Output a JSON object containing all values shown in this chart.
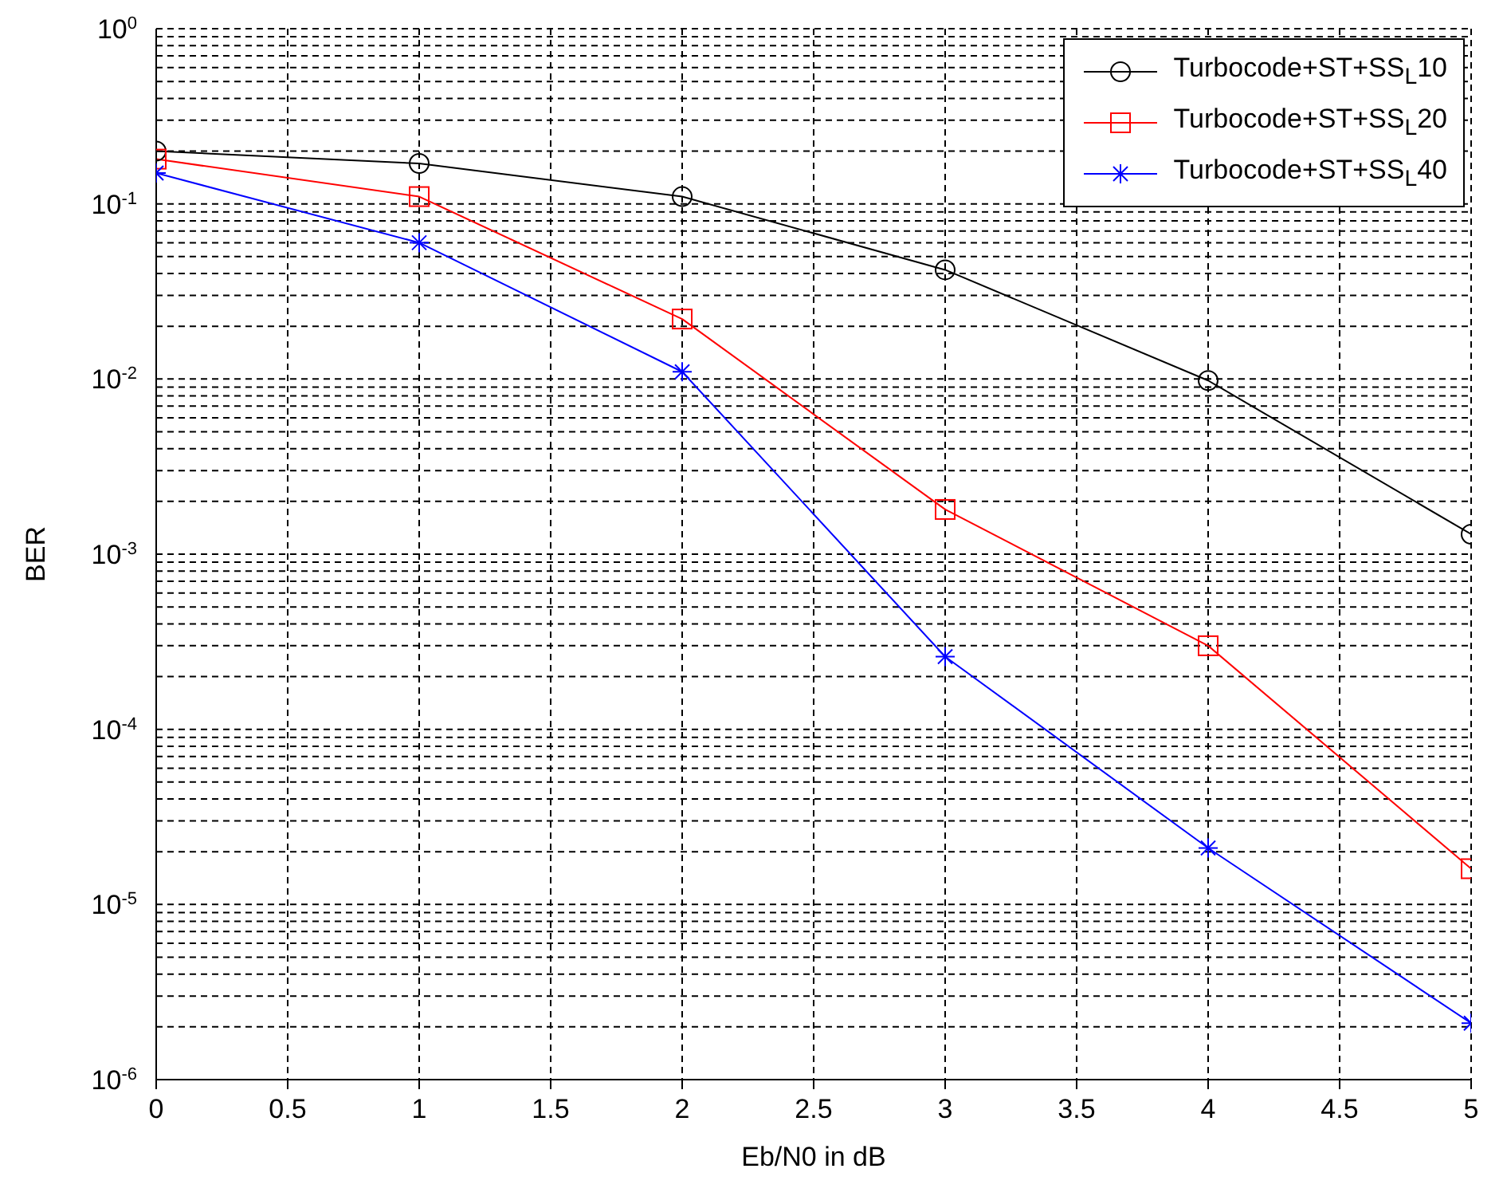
{
  "chart_data": {
    "type": "line",
    "xlabel": "Eb/N0 in dB",
    "ylabel": "BER",
    "log": "y",
    "grid": true,
    "legend": "top right",
    "x": [
      0,
      1,
      2,
      3,
      4,
      5
    ],
    "xlim": [
      0,
      5
    ],
    "xticks": [
      0,
      0.5,
      1,
      1.5,
      2,
      2.5,
      3,
      3.5,
      4,
      4.5,
      5
    ],
    "ylim": [
      1e-06,
      1
    ],
    "yticks": [
      {
        "value": 1e-06,
        "label": "10$^{-6}$"
      },
      {
        "value": 2e-06,
        "label": null
      },
      {
        "value": 3e-06,
        "label": null
      },
      {
        "value": 4e-06,
        "label": null
      },
      {
        "value": 5e-06,
        "label": null
      },
      {
        "value": 6e-06,
        "label": null
      },
      {
        "value": 7e-06,
        "label": null
      },
      {
        "value": 8e-06,
        "label": null
      },
      {
        "value": 9e-06,
        "label": null
      },
      {
        "value": 1e-05,
        "label": "10$^{-5}$"
      },
      {
        "value": 2e-05,
        "label": null
      },
      {
        "value": 3e-05,
        "label": null
      },
      {
        "value": 4e-05,
        "label": null
      },
      {
        "value": 5e-05,
        "label": null
      },
      {
        "value": 6e-05,
        "label": null
      },
      {
        "value": 7e-05,
        "label": null
      },
      {
        "value": 8e-05,
        "label": null
      },
      {
        "value": 9e-05,
        "label": null
      },
      {
        "value": 0.0001,
        "label": "10$^{-4}$"
      },
      {
        "value": 0.0002,
        "label": null
      },
      {
        "value": 0.0003,
        "label": null
      },
      {
        "value": 0.0004,
        "label": null
      },
      {
        "value": 0.0005,
        "label": null
      },
      {
        "value": 0.0006,
        "label": null
      },
      {
        "value": 0.0007,
        "label": null
      },
      {
        "value": 0.0008,
        "label": null
      },
      {
        "value": 0.0009,
        "label": null
      },
      {
        "value": 0.001,
        "label": "10$^{-3}$"
      },
      {
        "value": 0.002,
        "label": null
      },
      {
        "value": 0.003,
        "label": null
      },
      {
        "value": 0.004,
        "label": null
      },
      {
        "value": 0.005,
        "label": null
      },
      {
        "value": 0.006,
        "label": null
      },
      {
        "value": 0.007,
        "label": null
      },
      {
        "value": 0.008,
        "label": null
      },
      {
        "value": 0.009,
        "label": null
      },
      {
        "value": 0.01,
        "label": "10$^{-2}$"
      },
      {
        "value": 0.02,
        "label": null
      },
      {
        "value": 0.03,
        "label": null
      },
      {
        "value": 0.04,
        "label": null
      },
      {
        "value": 0.05,
        "label": null
      },
      {
        "value": 0.06,
        "label": null
      },
      {
        "value": 0.07,
        "label": null
      },
      {
        "value": 0.08,
        "label": null
      },
      {
        "value": 0.09,
        "label": null
      },
      {
        "value": 0.1,
        "label": "10$^{-1}$"
      },
      {
        "value": 0.2,
        "label": null
      },
      {
        "value": 0.3,
        "label": null
      },
      {
        "value": 0.4,
        "label": null
      },
      {
        "value": 0.5,
        "label": null
      },
      {
        "value": 0.6,
        "label": null
      },
      {
        "value": 0.7,
        "label": null
      },
      {
        "value": 0.8,
        "label": null
      },
      {
        "value": 0.9,
        "label": null
      },
      {
        "value": 1,
        "label": "10$^{0}$"
      }
    ],
    "line_style": "solid",
    "series": [
      {
        "name": "Turbocode+ST+SS$_{L}$10",
        "color": "#000000",
        "marker": "circle",
        "values": [
          0.2,
          0.17,
          0.11,
          0.042,
          0.0098,
          0.0013
        ]
      },
      {
        "name": "Turbocode+ST+SS$_{L}$20",
        "color": "#ff0000",
        "marker": "square",
        "values": [
          0.18,
          0.11,
          0.022,
          0.0018,
          0.0003,
          1.6e-05
        ]
      },
      {
        "name": "Turbocode+ST+SS$_{L}$40",
        "color": "#0000ff",
        "marker": "cross",
        "values": [
          0.15,
          0.06,
          0.011,
          0.00026,
          2.1e-05,
          2.1e-06
        ]
      }
    ]
  }
}
